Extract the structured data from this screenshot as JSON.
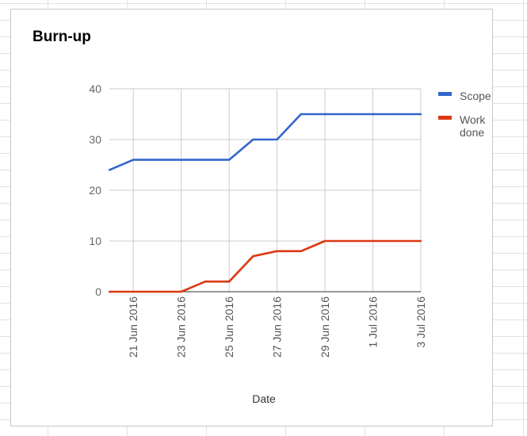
{
  "chart_data": {
    "type": "line",
    "title": "Burn-up",
    "xlabel": "Date",
    "ylabel": "",
    "ylim": [
      0,
      40
    ],
    "yticks": [
      "0",
      "10",
      "20",
      "30",
      "40"
    ],
    "x_tick_labels": [
      "21 Jun 2016",
      "23 Jun 2016",
      "25 Jun 2016",
      "27 Jun 2016",
      "29 Jun 2016",
      "1 Jul 2016",
      "3 Jul 2016"
    ],
    "x": [
      "2016-06-20",
      "2016-06-21",
      "2016-06-22",
      "2016-06-23",
      "2016-06-24",
      "2016-06-25",
      "2016-06-26",
      "2016-06-27",
      "2016-06-28",
      "2016-06-29",
      "2016-06-30",
      "2016-07-01",
      "2016-07-02",
      "2016-07-03"
    ],
    "series": [
      {
        "name": "Scope",
        "color": "#3366cc",
        "values": [
          24,
          26,
          26,
          26,
          26,
          26,
          30,
          30,
          35,
          35,
          35,
          35,
          35,
          35
        ]
      },
      {
        "name": "Work done",
        "legend_lines": [
          "Work",
          "done"
        ],
        "color": "#dc3912",
        "values": [
          0,
          0,
          0,
          0,
          2,
          2,
          7,
          8,
          8,
          10,
          10,
          10,
          10,
          10
        ]
      }
    ],
    "grid": true,
    "legend_position": "right"
  }
}
